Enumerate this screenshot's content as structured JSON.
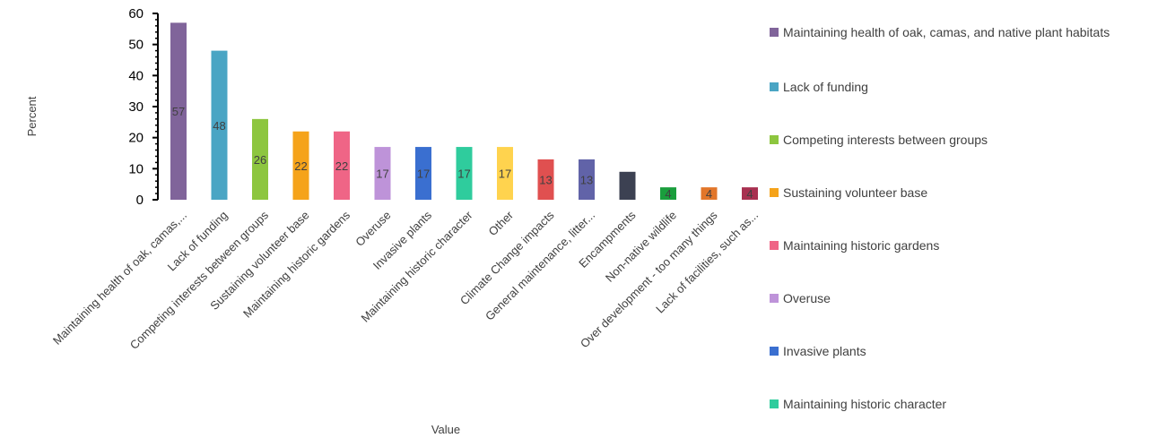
{
  "chart_data": {
    "type": "bar",
    "xlabel": "Value",
    "ylabel": "Percent",
    "ylim": [
      0,
      60
    ],
    "yticks": [
      0,
      10,
      20,
      30,
      40,
      50,
      60
    ],
    "legend_position": "right",
    "categories": [
      "Maintaining health of oak, camas,...",
      "Lack of funding",
      "Competing interests between groups",
      "Sustaining volunteer base",
      "Maintaining historic gardens",
      "Overuse",
      "Invasive plants",
      "Maintaining historic character",
      "Other",
      "Climate Change impacts",
      "General maintenance, litter...",
      "Encampments",
      "Non-native wildlife",
      "Over development - too many things",
      "Lack of facilities, such as..."
    ],
    "values": [
      57,
      48,
      26,
      22,
      22,
      17,
      17,
      17,
      17,
      13,
      13,
      9,
      4,
      4,
      4
    ],
    "data_labels": [
      "57",
      "48",
      "26",
      "22",
      "22",
      "17",
      "17",
      "17",
      "17",
      "13",
      "13",
      "",
      "4",
      "4",
      "4"
    ],
    "colors": [
      "#80649a",
      "#4aa5c4",
      "#8dc63f",
      "#f5a31a",
      "#ef6586",
      "#be93d9",
      "#3a6fd0",
      "#2fcc9d",
      "#ffd34e",
      "#e05050",
      "#6163a8",
      "#3c4152",
      "#1a9e3d",
      "#e2762a",
      "#a83050"
    ],
    "legend": [
      "Maintaining health of oak, camas, and native plant habitats",
      "Lack of funding",
      "Competing interests between groups",
      "Sustaining volunteer base",
      "Maintaining historic gardens",
      "Overuse",
      "Invasive plants",
      "Maintaining historic character"
    ]
  }
}
